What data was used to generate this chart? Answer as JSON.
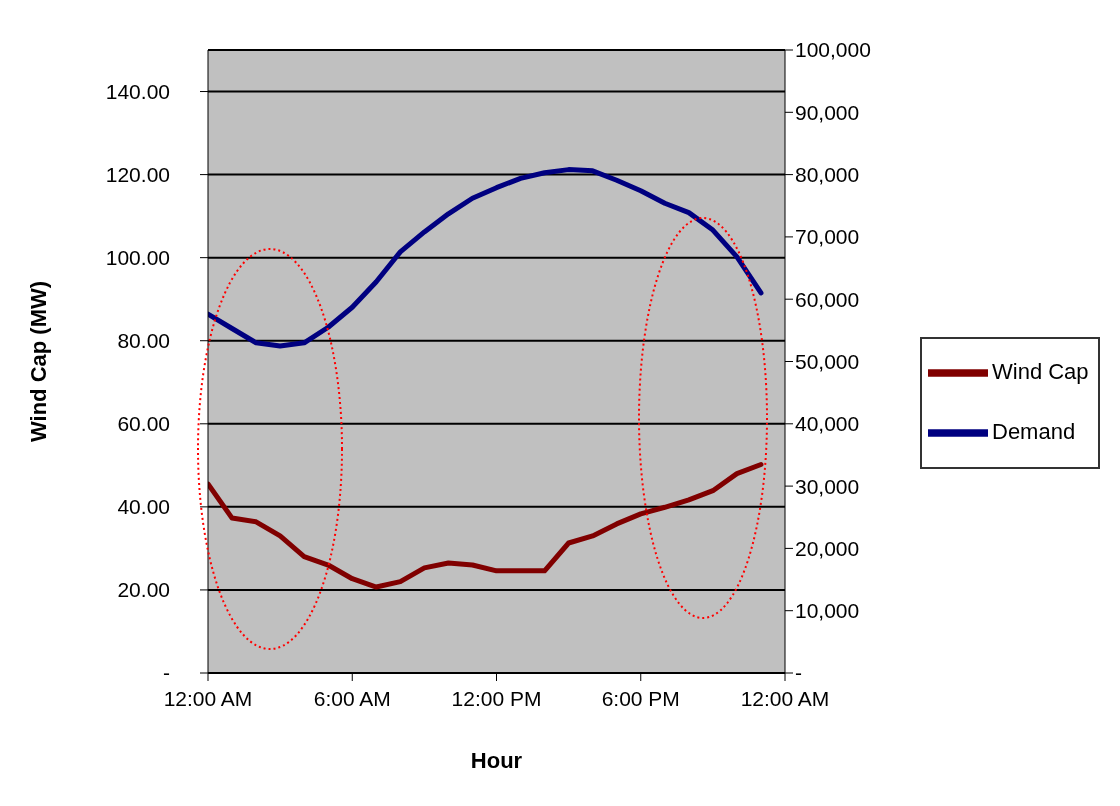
{
  "chart_data": {
    "type": "line",
    "xlabel": "Hour",
    "ylabel": "Wind Cap (MW)",
    "x": [
      0,
      1,
      2,
      3,
      4,
      5,
      6,
      7,
      8,
      9,
      10,
      11,
      12,
      13,
      14,
      15,
      16,
      17,
      18,
      19,
      20,
      21,
      22,
      23
    ],
    "xlim": [
      0,
      24
    ],
    "xticks": [
      {
        "value": 0,
        "label": "12:00 AM"
      },
      {
        "value": 6,
        "label": "6:00 AM"
      },
      {
        "value": 12,
        "label": "12:00 PM"
      },
      {
        "value": 18,
        "label": "6:00 PM"
      },
      {
        "value": 24,
        "label": "12:00 AM"
      }
    ],
    "ylim": [
      0,
      150
    ],
    "yticks": [
      {
        "value": 0,
        "label": "-"
      },
      {
        "value": 20,
        "label": "20.00"
      },
      {
        "value": 40,
        "label": "40.00"
      },
      {
        "value": 60,
        "label": "60.00"
      },
      {
        "value": 80,
        "label": "80.00"
      },
      {
        "value": 100,
        "label": "100.00"
      },
      {
        "value": 120,
        "label": "120.00"
      },
      {
        "value": 140,
        "label": "140.00"
      }
    ],
    "y2lim": [
      0,
      100000
    ],
    "y2ticks": [
      {
        "value": 0,
        "label": "-"
      },
      {
        "value": 10000,
        "label": "10,000"
      },
      {
        "value": 20000,
        "label": "20,000"
      },
      {
        "value": 30000,
        "label": "30,000"
      },
      {
        "value": 40000,
        "label": "40,000"
      },
      {
        "value": 50000,
        "label": "50,000"
      },
      {
        "value": 60000,
        "label": "60,000"
      },
      {
        "value": 70000,
        "label": "70,000"
      },
      {
        "value": 80000,
        "label": "80,000"
      },
      {
        "value": 90000,
        "label": "90,000"
      },
      {
        "value": 100000,
        "label": "100,000"
      }
    ],
    "grid": "y",
    "legend": "right",
    "marker": "none",
    "line_style": "solid",
    "series": [
      {
        "name": "Wind Cap",
        "color": "#800000",
        "values": [
          45.5,
          37.3,
          36.4,
          33,
          28,
          26,
          22.7,
          20.7,
          22,
          25.3,
          26.5,
          26,
          24.6,
          24.6,
          24.6,
          31.3,
          33,
          35.9,
          38.3,
          39.9,
          41.7,
          43.9,
          48,
          50.2
        ]
      },
      {
        "name": "Demand",
        "color": "#000080",
        "axis": "y2",
        "values": [
          57600,
          55300,
          53000,
          52500,
          53000,
          55500,
          58700,
          62800,
          67600,
          70800,
          73700,
          76200,
          77900,
          79400,
          80300,
          80800,
          80600,
          79100,
          77400,
          75400,
          73900,
          71100,
          66800,
          61000
        ]
      }
    ]
  }
}
